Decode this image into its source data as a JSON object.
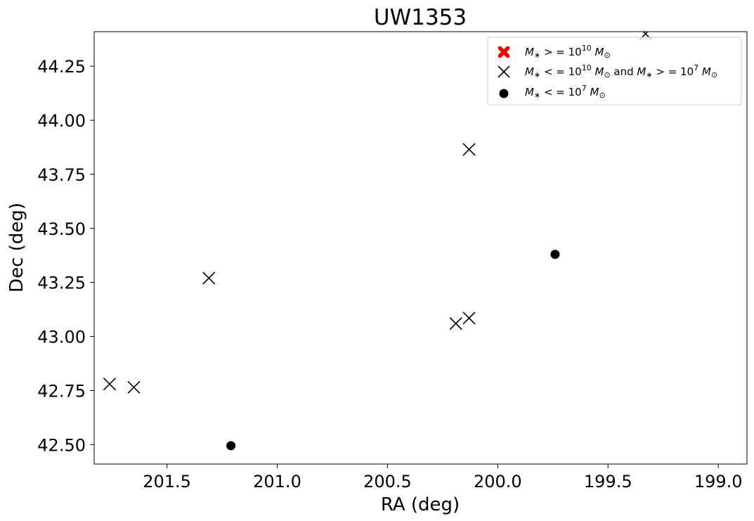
{
  "chart_data": {
    "type": "scatter",
    "title": "UW1353",
    "xlabel": "RA (deg)",
    "ylabel": "Dec (deg)",
    "x_inverted": true,
    "xlim": [
      201.83,
      198.87
    ],
    "ylim": [
      42.41,
      44.41
    ],
    "x_ticks": [
      201.5,
      201.0,
      200.5,
      200.0,
      199.5,
      199.0
    ],
    "x_tick_labels": [
      "201.5",
      "201.0",
      "200.5",
      "200.0",
      "199.5",
      "199.0"
    ],
    "y_ticks": [
      42.5,
      42.75,
      43.0,
      43.25,
      43.5,
      43.75,
      44.0,
      44.25
    ],
    "y_tick_labels": [
      "42.50",
      "42.75",
      "43.00",
      "43.25",
      "43.50",
      "43.75",
      "44.00",
      "44.25"
    ],
    "legend_position": "upper-right",
    "series": [
      {
        "name": "M* >= 10^10 M_sun",
        "legend_label": "M∗ > = 10¹⁰ M⊙",
        "marker": "filled-x",
        "color": "#ff0000",
        "points": []
      },
      {
        "name": "M* <= 10^10 M_sun and M* >= 10^7 M_sun",
        "legend_label": "M∗ < = 10¹⁰ M⊙ and M∗ > = 10⁷ M⊙",
        "marker": "x",
        "color": "#000000",
        "points": [
          {
            "ra": 201.76,
            "dec": 42.78
          },
          {
            "ra": 201.65,
            "dec": 42.765
          },
          {
            "ra": 201.31,
            "dec": 43.27
          },
          {
            "ra": 200.13,
            "dec": 43.865
          },
          {
            "ra": 200.19,
            "dec": 43.06
          },
          {
            "ra": 200.13,
            "dec": 43.085
          },
          {
            "ra": 199.33,
            "dec": 44.4
          }
        ]
      },
      {
        "name": "M* <= 10^7 M_sun",
        "legend_label": "M∗ < = 10⁷ M⊙",
        "marker": "dot",
        "color": "#000000",
        "points": [
          {
            "ra": 201.21,
            "dec": 42.495
          },
          {
            "ra": 199.74,
            "dec": 43.38
          }
        ]
      }
    ]
  }
}
